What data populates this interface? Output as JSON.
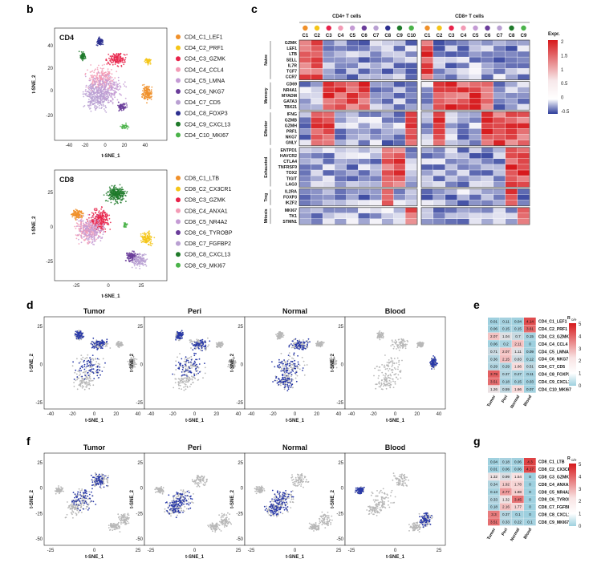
{
  "panels": {
    "b": {
      "label": "b",
      "cd4": {
        "title": "CD4",
        "xlabel": "t-SNE_1",
        "ylabel": "t-SNE_2",
        "xticks": [
          "-40",
          "-20",
          "0",
          "20",
          "40"
        ],
        "yticks": [
          "40",
          "20",
          "0",
          "-20"
        ],
        "legend": [
          "CD4_C1_LEF1",
          "CD4_C2_PRF1",
          "CD4_C3_GZMK",
          "CD4_C4_CCL4",
          "CD4_C5_LMNA",
          "CD4_C6_NKG7",
          "CD4_C7_CD5",
          "CD4_C8_FOXP3",
          "CD4_C9_CXCL13",
          "CD4_C10_MKI67"
        ],
        "colors": [
          "#f0902a",
          "#f5c518",
          "#e8234a",
          "#f39bb5",
          "#c49bd4",
          "#6a3d9a",
          "#b9a0d2",
          "#2c2f8f",
          "#1f7a2a",
          "#4bb34a"
        ]
      },
      "cd8": {
        "title": "CD8",
        "xlabel": "t-SNE_1",
        "ylabel": "t-SNE_2",
        "xticks": [
          "-25",
          "0",
          "25"
        ],
        "yticks": [
          "25",
          "0",
          "-25"
        ],
        "legend": [
          "CD8_C1_LTB",
          "CD8_C2_CX3CR1",
          "CD8_C3_GZMK",
          "CD8_C4_ANXA1",
          "CD8_C5_NR4A2",
          "CD8_C6_TYROBP",
          "CD8_C7_FGFBP2",
          "CD8_C8_CXCL13",
          "CD8_C9_MKI67"
        ],
        "colors": [
          "#f0902a",
          "#f5c518",
          "#e8234a",
          "#f39bb5",
          "#c49bd4",
          "#6a3d9a",
          "#b9a0d2",
          "#1f7a2a",
          "#4bb34a"
        ]
      }
    },
    "c": {
      "label": "c",
      "cd4_header": "CD4+ T cells",
      "cd8_header": "CD8+ T cells",
      "cd4_clusters": [
        "C1",
        "C2",
        "C3",
        "C4",
        "C5",
        "C6",
        "C7",
        "C8",
        "C9",
        "C10"
      ],
      "cd8_clusters": [
        "C1",
        "C2",
        "C3",
        "C4",
        "C5",
        "C6",
        "C7",
        "C8",
        "C9"
      ],
      "legend_title": "Expr.",
      "legend_ticks": [
        "2",
        "1.5",
        "1",
        "0.5",
        "0",
        "-0.5"
      ],
      "groups": [
        {
          "name": "Naive",
          "genes": [
            "GZMK",
            "LEF1",
            "LTB",
            "SELL",
            "IL7R",
            "TCF7",
            "CCR7"
          ]
        },
        {
          "name": "Memory",
          "genes": [
            "CD69",
            "NR4A1",
            "MYADM",
            "GATA3",
            "TBX21"
          ]
        },
        {
          "name": "Effector",
          "genes": [
            "IFNG",
            "GZMB",
            "GZMH",
            "PRF1",
            "NKG7",
            "GNLY"
          ]
        },
        {
          "name": "Exhausted",
          "genes": [
            "ENTPD1",
            "HAVCR2",
            "CTLA4",
            "TNFRSF9",
            "TOX2",
            "TIGIT",
            "LAG3"
          ]
        },
        {
          "name": "Treg",
          "genes": [
            "IL2RA",
            "FOXP3",
            "IKZF2"
          ]
        },
        {
          "name": "Mitosis",
          "genes": [
            "MKI67",
            "TK1",
            "STMN1"
          ]
        }
      ]
    },
    "d": {
      "label": "d",
      "titles": [
        "Tumor",
        "Peri",
        "Normal",
        "Blood"
      ],
      "xlabel": "t-SNE_1",
      "ylabel": "t-SNE_2",
      "xticks": [
        "-40",
        "-20",
        "0",
        "20",
        "40"
      ],
      "yticks": [
        "25",
        "0",
        "-25"
      ]
    },
    "e": {
      "label": "e",
      "columns": [
        "Tumor",
        "Peri",
        "Normal",
        "Blood"
      ],
      "rows": [
        "CD4_C1_LEF1",
        "CD4_C2_PRF1",
        "CD4_C3_GZMK",
        "CD4_C4_CCL4",
        "CD4_C5_LMNA",
        "CD4_C6_NKG7",
        "CD4_C7_CD5",
        "CD4_C8_FOXP3",
        "CD4_C9_CXCL13",
        "CD4_C10_MKI67"
      ],
      "values": [
        [
          0.01,
          0.11,
          0.04,
          4.14
        ],
        [
          0.06,
          0.15,
          0.15,
          3.61
        ],
        [
          2.07,
          1.04,
          0.7,
          0.15
        ],
        [
          0.06,
          0.2,
          2.11,
          0.0
        ],
        [
          0.71,
          2.07,
          1.11,
          0.09
        ],
        [
          0.36,
          2.15,
          0.83,
          0.12
        ],
        [
          0.29,
          0.29,
          1.66,
          0.51
        ],
        [
          3.79,
          0.37,
          0.27,
          0.11
        ],
        [
          3.51,
          0.18,
          0.15,
          0.03
        ],
        [
          1.26,
          0.59,
          1.66,
          0.07
        ]
      ],
      "legend_title": "R",
      "legend_sub": "o/e",
      "legend_ticks": [
        "5",
        "4",
        "3",
        "2",
        "1",
        "0"
      ],
      "vmax": 5
    },
    "f": {
      "label": "f",
      "titles": [
        "Tumor",
        "Peri",
        "Normal",
        "Blood"
      ],
      "xlabel": "t-SNE_1",
      "ylabel": "t-SNE_2",
      "xticks": [
        "-25",
        "0",
        "25"
      ],
      "yticks": [
        "25",
        "0",
        "-25",
        "-50"
      ]
    },
    "g": {
      "label": "g",
      "columns": [
        "Tumor",
        "Peri",
        "Normal",
        "Blood"
      ],
      "rows": [
        "CD8_C1_LTB",
        "CD8_C2_CX3CR1",
        "CD8_C3_GZMK",
        "CD8_C4_ANXA1",
        "CD8_C5_NR4A2",
        "CD8_C6_TYROBP",
        "CD8_C7_FGFBP2",
        "CD8_C8_CXCL13",
        "CD8_C9_MKI67"
      ],
      "values": [
        [
          0.04,
          0.18,
          0.06,
          4.3
        ],
        [
          0.01,
          0.06,
          0.06,
          4.17
        ],
        [
          1.32,
          0.99,
          1.54,
          0.0
        ],
        [
          0.34,
          1.92,
          1.78,
          0.0
        ],
        [
          0.13,
          2.77,
          1.88,
          0.0
        ],
        [
          0.33,
          1.32,
          3.45,
          0.0
        ],
        [
          0.18,
          2.16,
          1.77,
          0.0
        ],
        [
          3.3,
          0.37,
          0.1,
          0.0
        ],
        [
          3.51,
          0.33,
          0.22,
          0.1
        ]
      ],
      "legend_title": "R",
      "legend_sub": "o/e",
      "legend_ticks": [
        "5",
        "4",
        "3",
        "2",
        "1",
        "0"
      ],
      "vmax": 5
    }
  }
}
